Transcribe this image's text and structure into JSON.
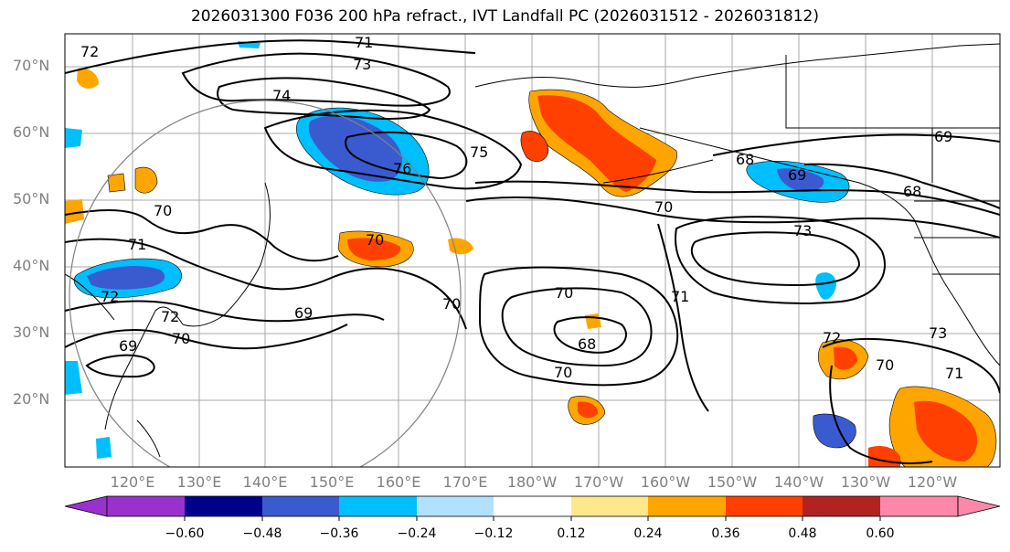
{
  "title": "2026031300 F036 200 hPa refract., IVT Landfall PC (2026031512 - 2026031812)",
  "lat_labels": [
    "70°N",
    "60°N",
    "50°N",
    "40°N",
    "30°N",
    "20°N"
  ],
  "lon_labels": [
    "120°E",
    "130°E",
    "140°E",
    "150°E",
    "160°E",
    "170°E",
    "180°W",
    "170°W",
    "160°W",
    "150°W",
    "140°W",
    "130°W",
    "120°W"
  ],
  "contour_labels": [
    "72",
    "71",
    "72",
    "73",
    "74",
    "75",
    "76",
    "70",
    "68",
    "69",
    "68",
    "70",
    "73",
    "71",
    "70",
    "69",
    "72",
    "70",
    "69",
    "70",
    "68",
    "70",
    "71",
    "72",
    "73",
    "70",
    "71",
    "69"
  ],
  "colorbar": {
    "ticks": [
      "−0.60",
      "−0.48",
      "−0.36",
      "−0.24",
      "−0.12",
      "0.12",
      "0.24",
      "0.36",
      "0.48",
      "0.60"
    ],
    "colors": [
      "#9932cc",
      "#00008b",
      "#3a5bd0",
      "#00bfff",
      "#b0e2ff",
      "#ffffff",
      "#ffe88a",
      "#ffa500",
      "#ff4000",
      "#b22222",
      "#ff88aa"
    ]
  }
}
